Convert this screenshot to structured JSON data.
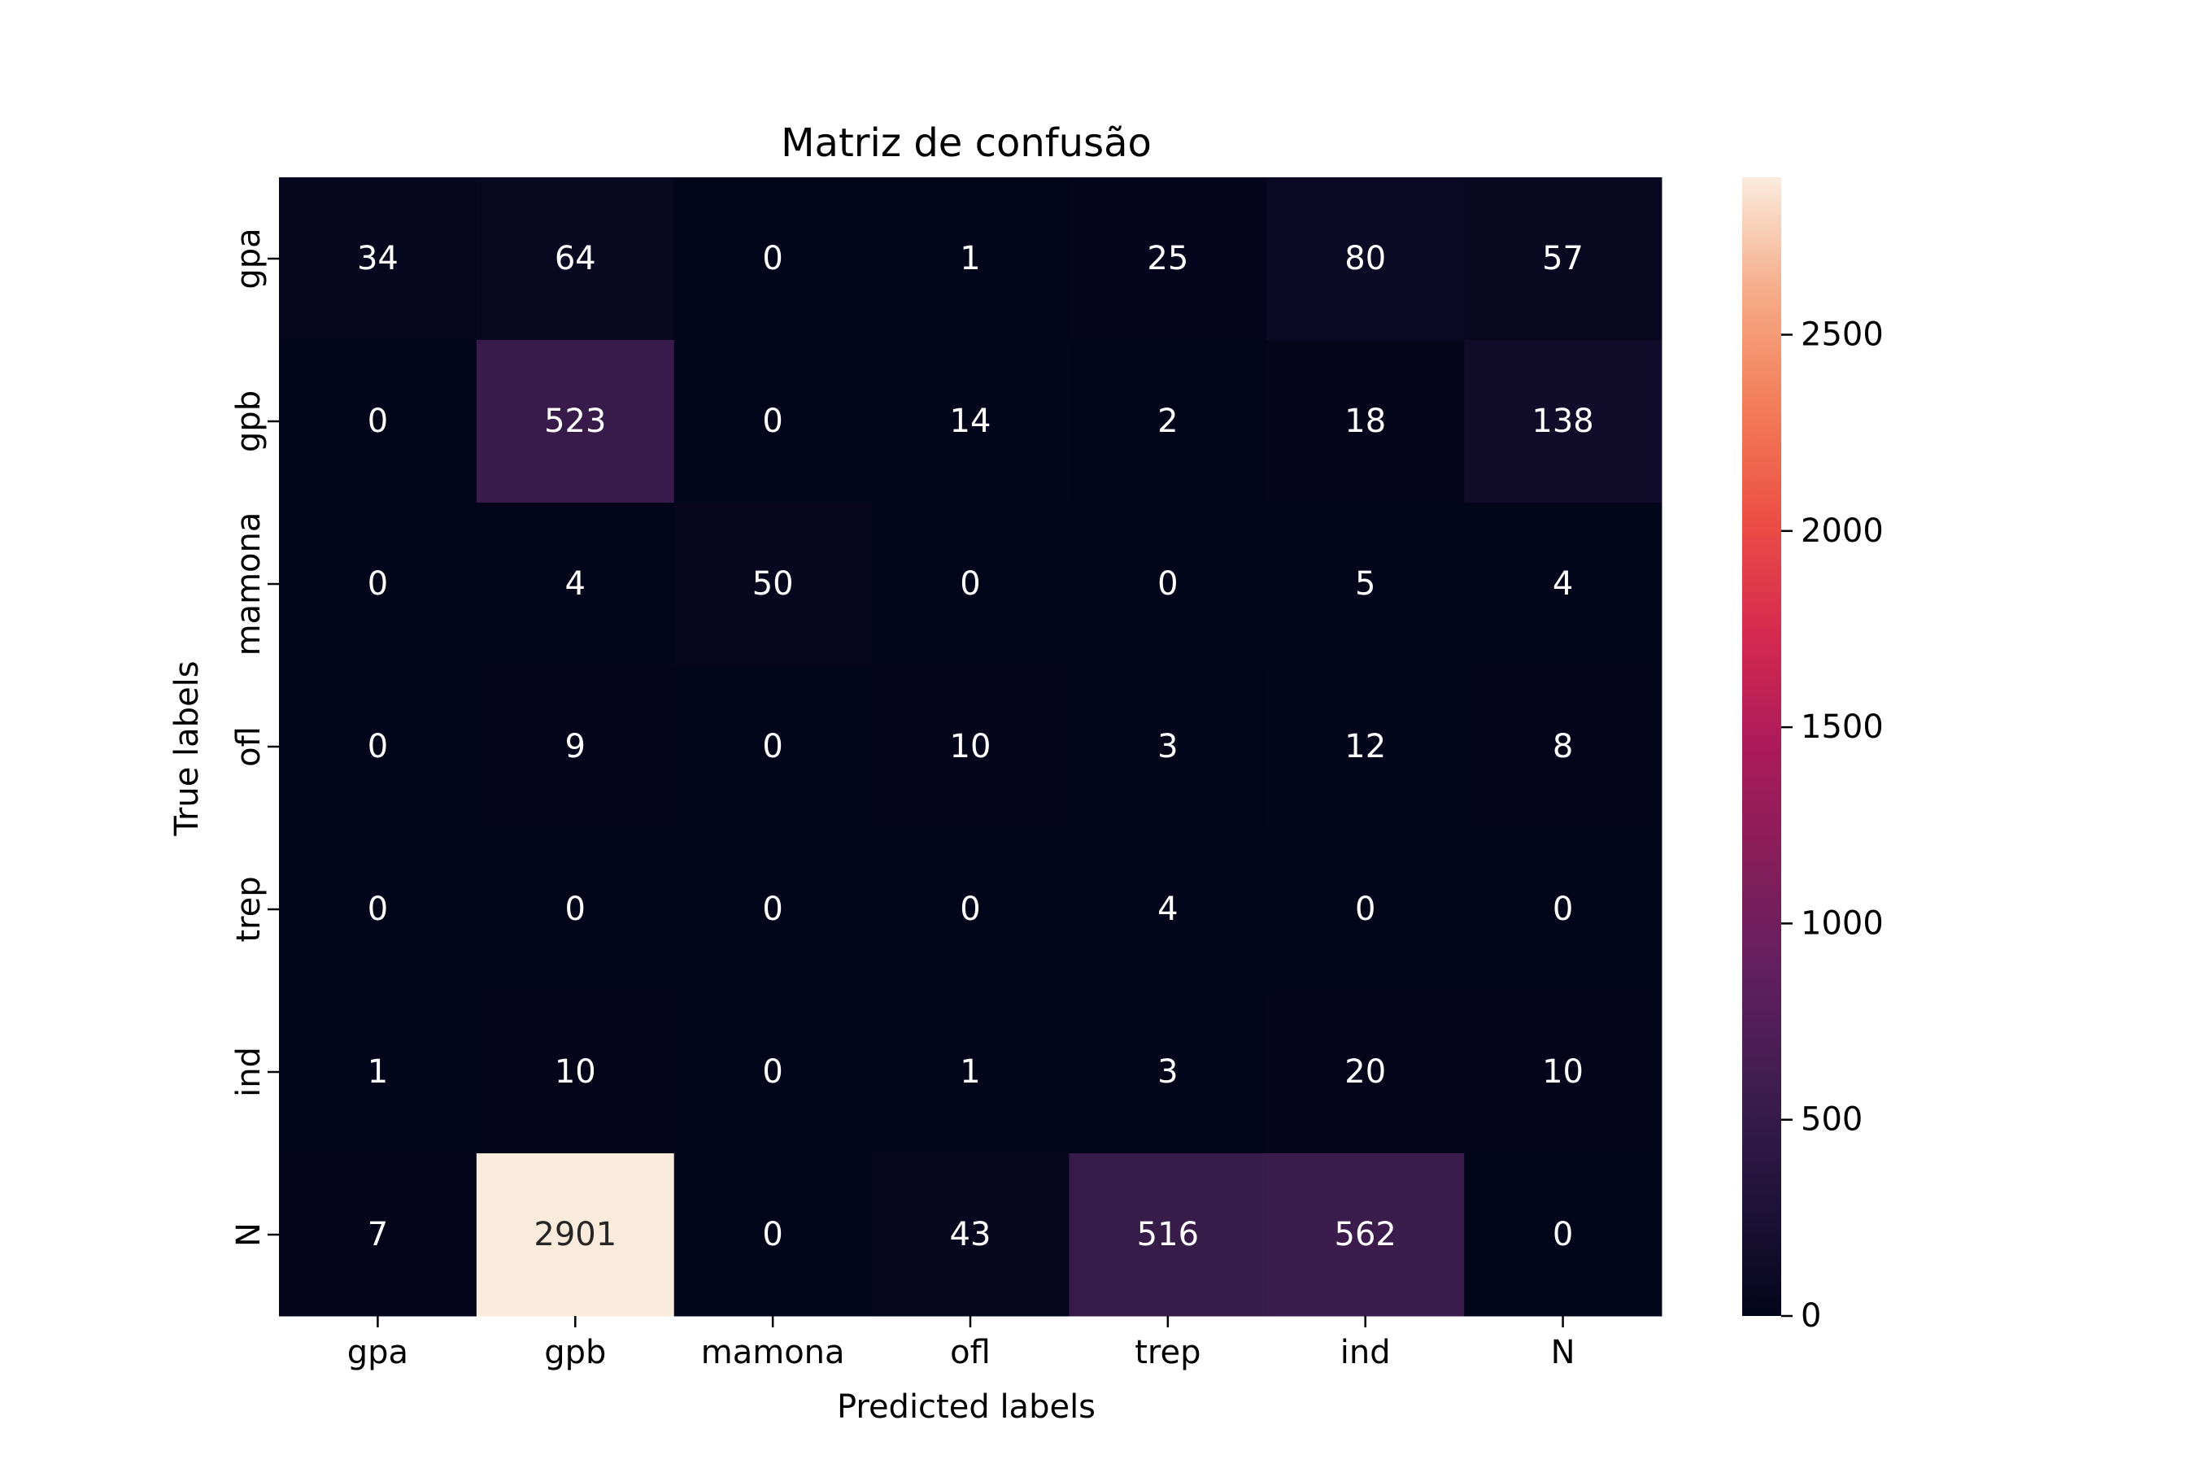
{
  "chart_data": {
    "type": "heatmap",
    "title": "Matriz de confusão",
    "xlabel": "Predicted labels",
    "ylabel": "True labels",
    "x_categories": [
      "gpa",
      "gpb",
      "mamona",
      "ofl",
      "trep",
      "ind",
      "N"
    ],
    "y_categories": [
      "gpa",
      "gpb",
      "mamona",
      "ofl",
      "trep",
      "ind",
      "N"
    ],
    "values": [
      [
        34,
        64,
        0,
        1,
        25,
        80,
        57
      ],
      [
        0,
        523,
        0,
        14,
        2,
        18,
        138
      ],
      [
        0,
        4,
        50,
        0,
        0,
        5,
        4
      ],
      [
        0,
        9,
        0,
        10,
        3,
        12,
        8
      ],
      [
        0,
        0,
        0,
        0,
        4,
        0,
        0
      ],
      [
        1,
        10,
        0,
        1,
        3,
        20,
        10
      ],
      [
        7,
        2901,
        0,
        43,
        516,
        562,
        0
      ]
    ],
    "colorbar": {
      "colormap": "rocket",
      "vmin": 0,
      "vmax": 2901,
      "ticks": [
        0,
        500,
        1000,
        1500,
        2000,
        2500
      ]
    },
    "grid": false
  }
}
